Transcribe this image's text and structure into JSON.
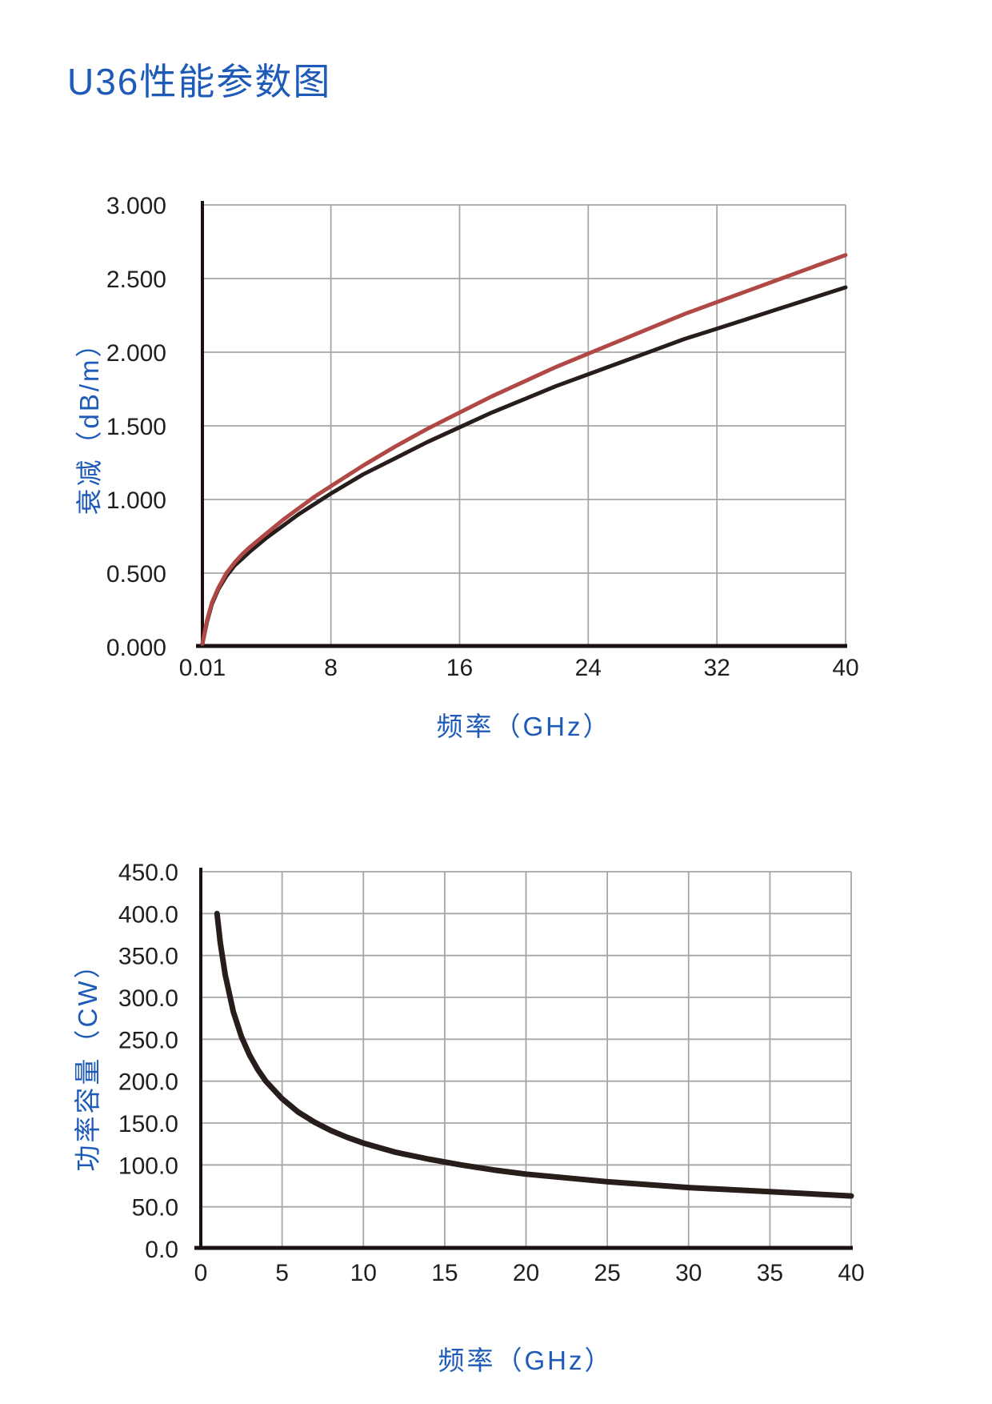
{
  "page": {
    "title": "U36性能参数图",
    "background": "#ffffff"
  },
  "colors": {
    "accent_blue": "#1e5bb8",
    "tick_text": "#1f1f1f",
    "grid": "#a6a6a6",
    "axis": "#1b1110",
    "attenuation_red": "#b04846",
    "attenuation_black": "#271d1a",
    "power_black": "#271d1a"
  },
  "chart_data": [
    {
      "type": "line",
      "name": "attenuation-chart",
      "title": "",
      "xlabel": "频率（GHz）",
      "ylabel": "衰减（dB/m）",
      "xlim": [
        0.01,
        40
      ],
      "ylim": [
        0,
        3
      ],
      "grid": true,
      "legend": "none",
      "x_ticks": [
        0.01,
        8,
        16,
        24,
        32,
        40
      ],
      "x_tick_labels": [
        "0.01",
        "8",
        "16",
        "24",
        "32",
        "40"
      ],
      "y_ticks": [
        0,
        0.5,
        1,
        1.5,
        2,
        2.5,
        3
      ],
      "y_tick_labels": [
        "0.000",
        "0.500",
        "1.000",
        "1.500",
        "2.000",
        "2.500",
        "3.000"
      ],
      "series": [
        {
          "name": "attenuation-black-series",
          "color": "#271d1a",
          "stroke_width": 5,
          "points": [
            [
              0.01,
              0.02
            ],
            [
              0.3,
              0.17
            ],
            [
              0.6,
              0.29
            ],
            [
              1,
              0.39
            ],
            [
              1.5,
              0.48
            ],
            [
              2,
              0.55
            ],
            [
              2.5,
              0.6
            ],
            [
              3,
              0.65
            ],
            [
              4,
              0.74
            ],
            [
              5,
              0.82
            ],
            [
              6,
              0.9
            ],
            [
              7,
              0.97
            ],
            [
              8,
              1.04
            ],
            [
              10,
              1.17
            ],
            [
              12,
              1.28
            ],
            [
              14,
              1.39
            ],
            [
              16,
              1.49
            ],
            [
              18,
              1.59
            ],
            [
              20,
              1.68
            ],
            [
              22,
              1.77
            ],
            [
              24,
              1.85
            ],
            [
              26,
              1.93
            ],
            [
              28,
              2.01
            ],
            [
              30,
              2.09
            ],
            [
              32,
              2.16
            ],
            [
              34,
              2.23
            ],
            [
              36,
              2.3
            ],
            [
              38,
              2.37
            ],
            [
              40,
              2.44
            ]
          ]
        },
        {
          "name": "attenuation-red-series",
          "color": "#b04846",
          "stroke_width": 5,
          "points": [
            [
              0.01,
              0.02
            ],
            [
              0.3,
              0.18
            ],
            [
              0.6,
              0.3
            ],
            [
              1,
              0.4
            ],
            [
              1.5,
              0.5
            ],
            [
              2,
              0.57
            ],
            [
              2.5,
              0.63
            ],
            [
              3,
              0.68
            ],
            [
              4,
              0.77
            ],
            [
              5,
              0.86
            ],
            [
              6,
              0.94
            ],
            [
              7,
              1.02
            ],
            [
              8,
              1.09
            ],
            [
              10,
              1.23
            ],
            [
              12,
              1.36
            ],
            [
              14,
              1.48
            ],
            [
              16,
              1.59
            ],
            [
              18,
              1.7
            ],
            [
              20,
              1.8
            ],
            [
              22,
              1.9
            ],
            [
              24,
              1.99
            ],
            [
              26,
              2.08
            ],
            [
              28,
              2.17
            ],
            [
              30,
              2.26
            ],
            [
              32,
              2.34
            ],
            [
              34,
              2.42
            ],
            [
              36,
              2.5
            ],
            [
              38,
              2.58
            ],
            [
              40,
              2.66
            ]
          ]
        }
      ]
    },
    {
      "type": "line",
      "name": "power-capacity-chart",
      "title": "",
      "xlabel": "频率（GHz）",
      "ylabel": "功率容量（CW）",
      "xlim": [
        0,
        40
      ],
      "ylim": [
        0,
        450
      ],
      "grid": true,
      "legend": "none",
      "x_ticks": [
        0,
        5,
        10,
        15,
        20,
        25,
        30,
        35,
        40
      ],
      "x_tick_labels": [
        "0",
        "5",
        "10",
        "15",
        "20",
        "25",
        "30",
        "35",
        "40"
      ],
      "y_ticks": [
        0,
        50,
        100,
        150,
        200,
        250,
        300,
        350,
        400,
        450
      ],
      "y_tick_labels": [
        "0.0",
        "50.0",
        "100.0",
        "150.0",
        "200.0",
        "250.0",
        "300.0",
        "350.0",
        "400.0",
        "450.0"
      ],
      "series": [
        {
          "name": "power-capacity-series",
          "color": "#271d1a",
          "stroke_width": 7,
          "points": [
            [
              1,
              400
            ],
            [
              1.2,
              365
            ],
            [
              1.5,
              327
            ],
            [
              2,
              283
            ],
            [
              2.5,
              253
            ],
            [
              3,
              231
            ],
            [
              3.5,
              214
            ],
            [
              4,
              200
            ],
            [
              5,
              179
            ],
            [
              6,
              163
            ],
            [
              7,
              151
            ],
            [
              8,
              141
            ],
            [
              9,
              133
            ],
            [
              10,
              126
            ],
            [
              12,
              115
            ],
            [
              14,
              107
            ],
            [
              16,
              100
            ],
            [
              18,
              94
            ],
            [
              20,
              89
            ],
            [
              25,
              80
            ],
            [
              30,
              73
            ],
            [
              35,
              68
            ],
            [
              40,
              63
            ]
          ]
        }
      ]
    }
  ]
}
